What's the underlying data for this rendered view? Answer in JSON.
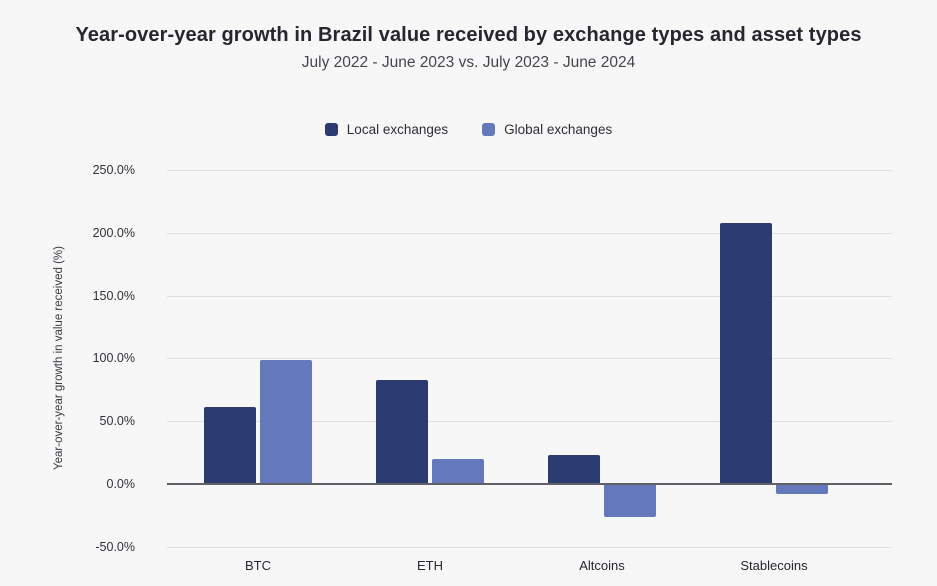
{
  "header": {
    "title": "Year-over-year growth in Brazil value received by exchange types and asset types",
    "subtitle": "July 2022 - June 2023 vs. July 2023 - June 2024"
  },
  "chart_data": {
    "type": "bar",
    "title": "Year-over-year growth in Brazil value received by exchange types and asset types",
    "subtitle": "July 2022 - June 2023 vs. July 2023 - June 2024",
    "xlabel": "",
    "ylabel": "Year-over-year growth in value received (%)",
    "categories": [
      "BTC",
      "ETH",
      "Altcoins",
      "Stablecoins"
    ],
    "series": [
      {
        "name": "Local exchanges",
        "color": "#2b3a70",
        "values": [
          61,
          83,
          23,
          208
        ]
      },
      {
        "name": "Global exchanges",
        "color": "#6479bc",
        "values": [
          99,
          20,
          -26,
          -8
        ]
      }
    ],
    "ylim": [
      -50,
      250
    ],
    "ytick_step": 50,
    "ytick_labels": [
      "250.0%",
      "200.0%",
      "150.0%",
      "100.0%",
      "50.0%",
      "0.0%",
      "-50.0%"
    ],
    "grid": true,
    "legend_position": "top"
  },
  "colors": {
    "background": "#f7f7f8",
    "local_series": "#2b3a70",
    "global_series": "#6479bc",
    "gridline": "#e1e1e4",
    "zero_line": "#5f6066",
    "title_text": "#26262e",
    "subtitle_text": "#45454e"
  }
}
